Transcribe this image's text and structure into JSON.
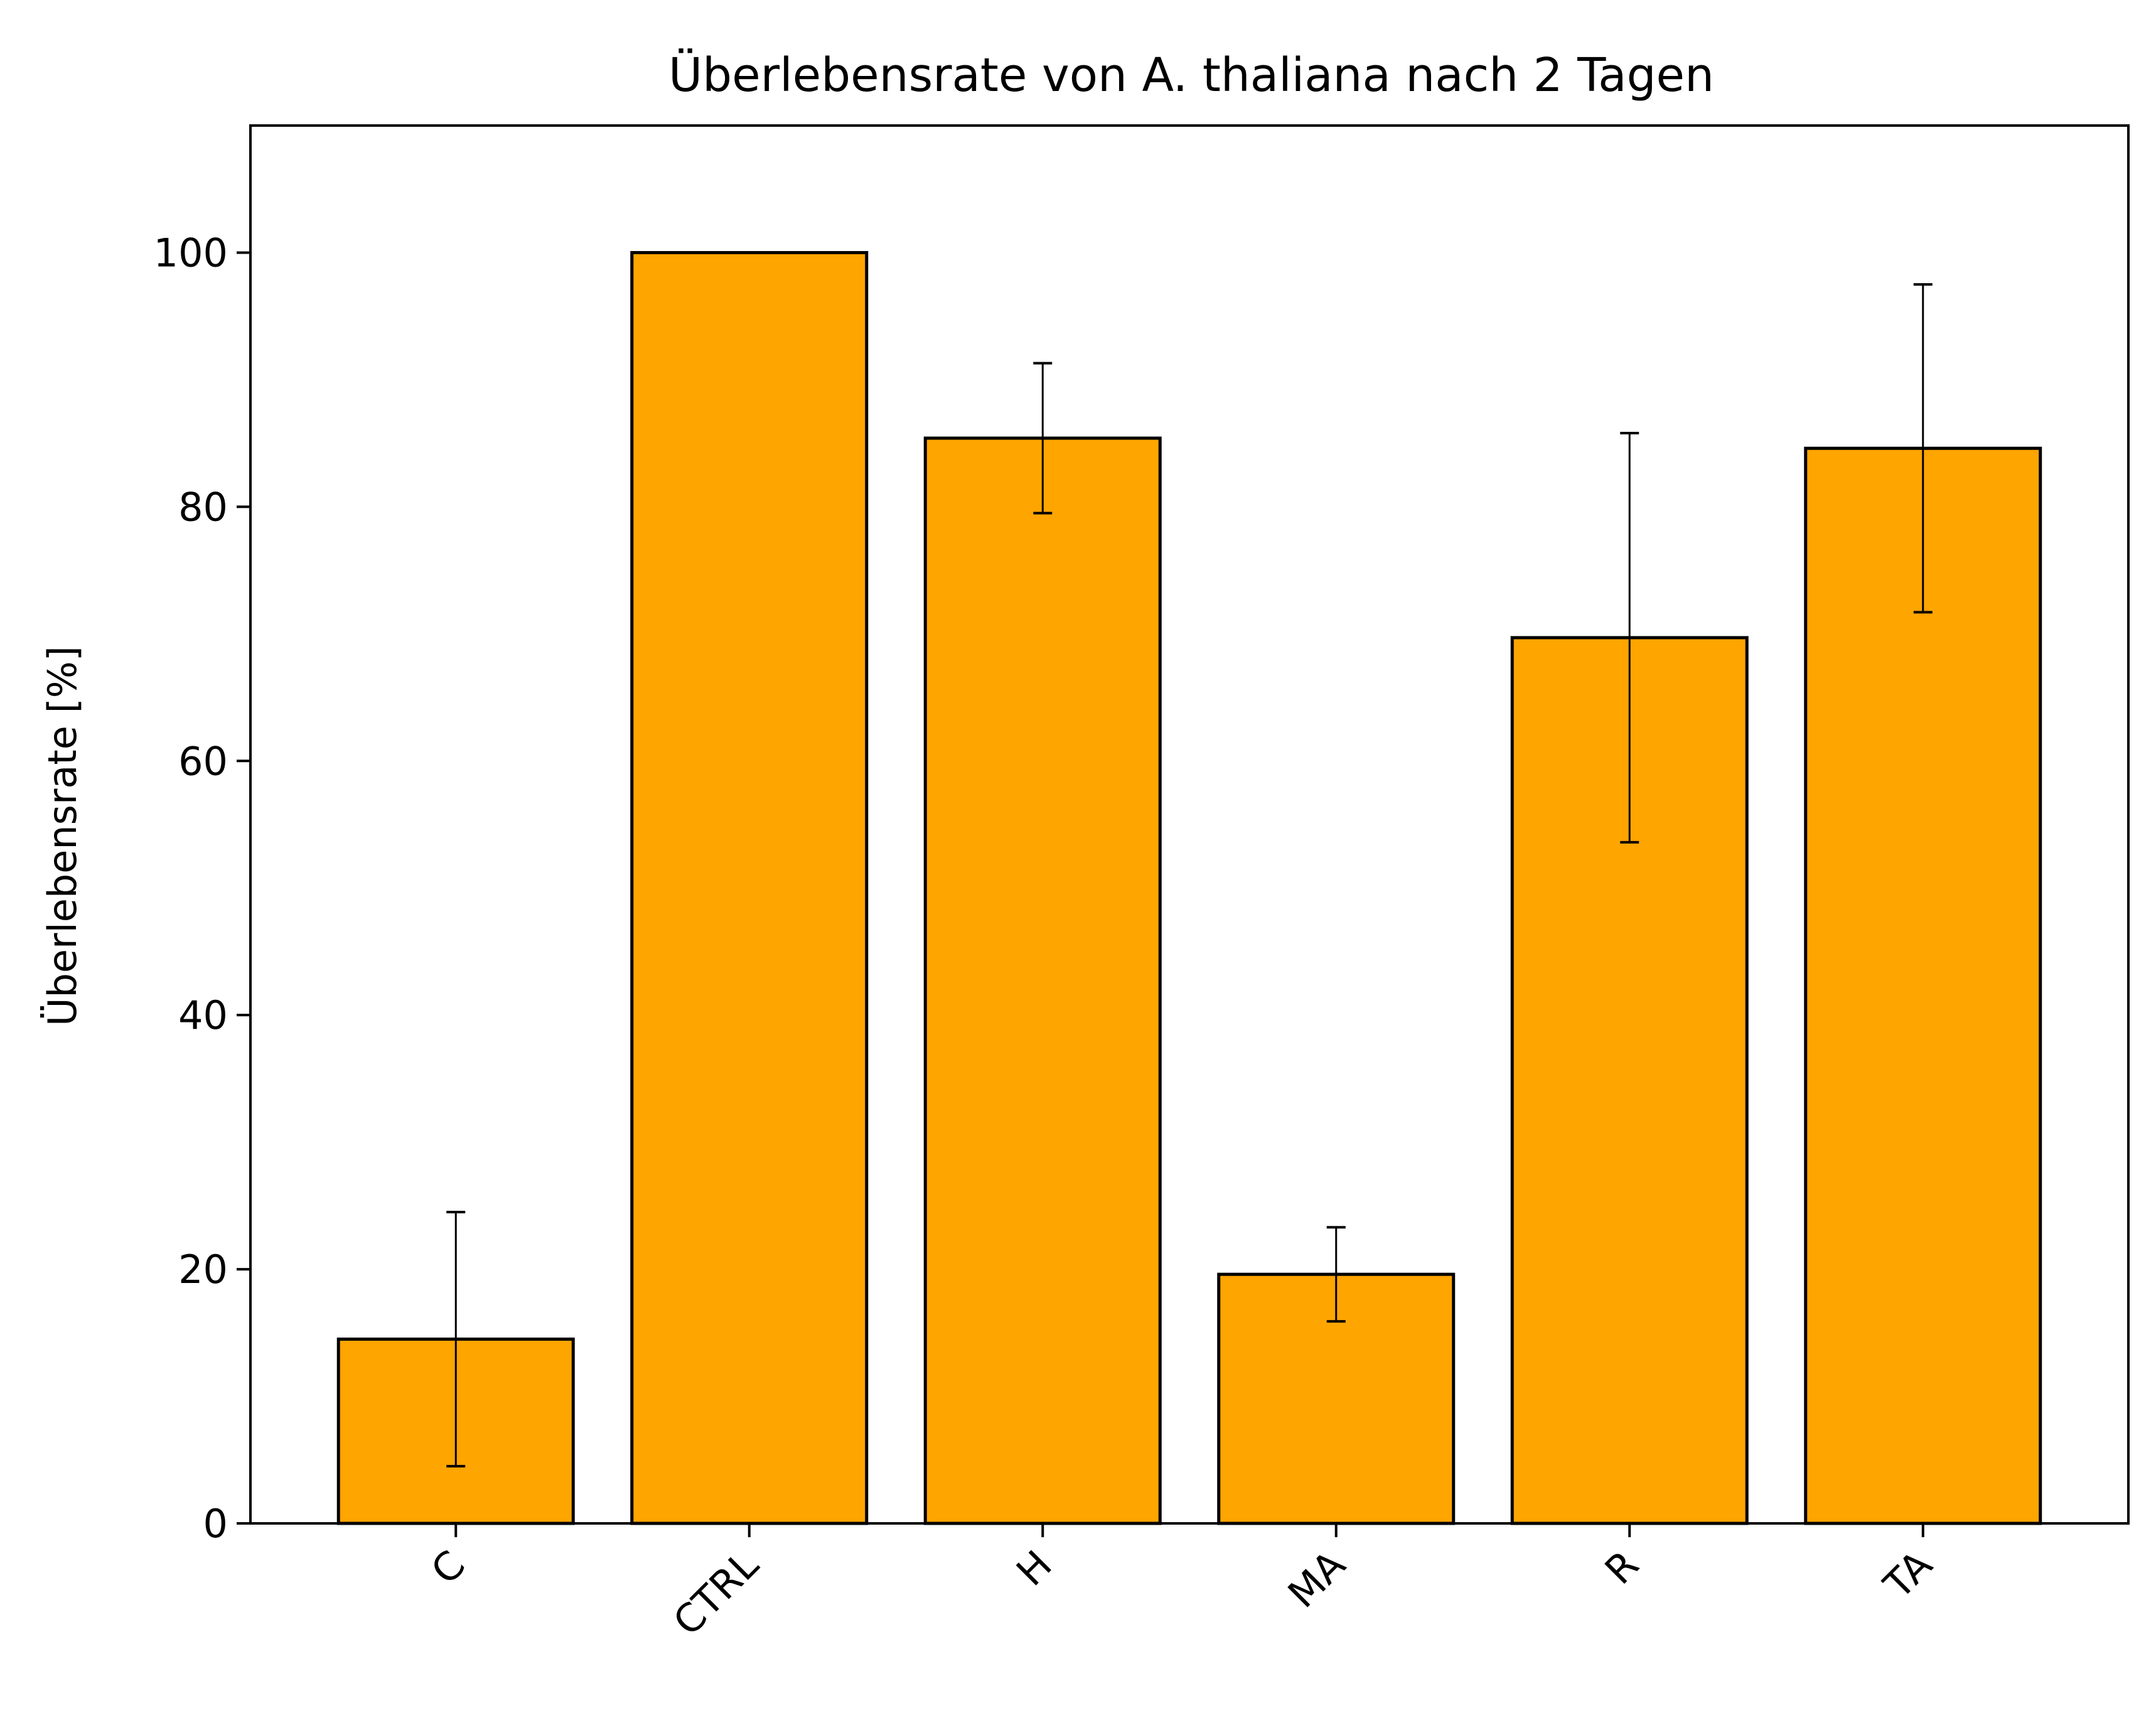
{
  "chart_data": {
    "type": "bar",
    "title": "Überlebensrate von A. thaliana nach 2 Tagen",
    "xlabel": "",
    "ylabel": "Überlebensrate [%]",
    "categories": [
      "C",
      "CTRL",
      "H",
      "MA",
      "R",
      "TA"
    ],
    "values": [
      14.5,
      100.0,
      85.4,
      19.6,
      69.7,
      84.6
    ],
    "errors": [
      10.0,
      0.0,
      5.9,
      3.7,
      16.1,
      12.9
    ],
    "ylim": [
      0,
      110
    ],
    "yticks": [
      "0",
      "20",
      "40",
      "60",
      "80",
      "100"
    ],
    "grid": false,
    "legend": "none",
    "colors": {
      "bar_fill": "#FFA500",
      "bar_edge": "#000000",
      "error_bar": "#000000"
    }
  }
}
